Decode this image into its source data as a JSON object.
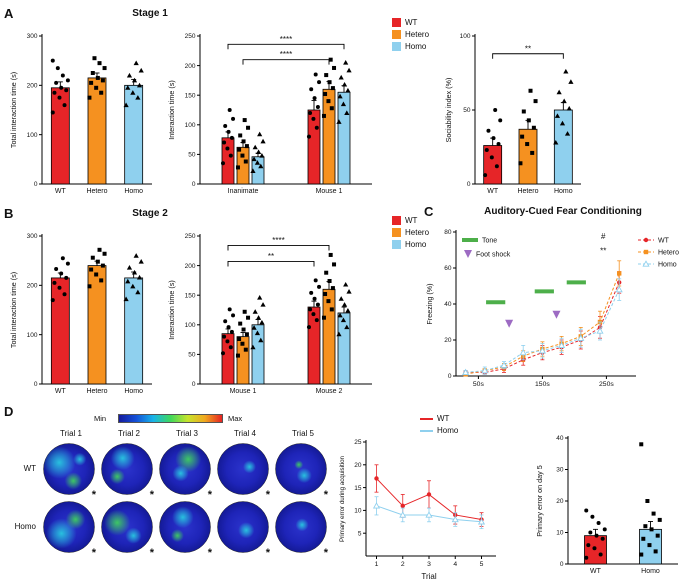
{
  "colors": {
    "wt": "#e62528",
    "hetero": "#f59120",
    "homo": "#8fd0ee",
    "tone": "#4daf4a",
    "footshock": "#9d6bc3",
    "spot_c": "#29c8e0",
    "spot_g": "#3fcf5f"
  },
  "panels": {
    "a": "A",
    "b": "B",
    "c": "C",
    "d": "D"
  },
  "legend": {
    "wt": "WT",
    "hetero": "Hetero",
    "homo": "Homo"
  },
  "d_legend": {
    "wt": "WT",
    "homo": "Homo"
  },
  "chart_data": [
    {
      "id": "stage1-total-interaction",
      "type": "bar",
      "ylabel": "Total interaction time (s)",
      "ylim": [
        0,
        300
      ],
      "yticks": [
        0,
        100,
        200,
        300
      ],
      "categories": [
        "WT",
        "Hetero",
        "Homo"
      ],
      "values": [
        195,
        215,
        200
      ],
      "errors": [
        12,
        10,
        12
      ],
      "colors": [
        "wt",
        "hetero",
        "homo"
      ],
      "markers": [
        "circle",
        "square",
        "triangle"
      ],
      "points": [
        [
          145,
          160,
          175,
          185,
          190,
          195,
          205,
          210,
          220,
          235,
          250
        ],
        [
          175,
          185,
          195,
          205,
          210,
          215,
          225,
          235,
          245,
          255
        ],
        [
          160,
          175,
          185,
          195,
          200,
          210,
          220,
          230,
          245
        ]
      ],
      "m": {
        "l": 34,
        "r": 6,
        "t": 14,
        "b": 18
      }
    },
    {
      "id": "stage1-interaction-time",
      "type": "grouped_bar",
      "title": "Stage 1",
      "ylabel": "Interaction time (s)",
      "ylim": [
        0,
        250
      ],
      "yticks": [
        0,
        50,
        100,
        150,
        200,
        250
      ],
      "groups": [
        "Inanimate",
        "Mouse 1"
      ],
      "series": [
        {
          "name": "WT",
          "color": "wt",
          "marker": "circle",
          "values": [
            78,
            125
          ],
          "errors": [
            10,
            16
          ],
          "points": [
            [
              35,
              48,
              60,
              70,
              78,
              88,
              98,
              110,
              125
            ],
            [
              80,
              95,
              110,
              120,
              130,
              145,
              160,
              172,
              185
            ]
          ]
        },
        {
          "name": "Hetero",
          "color": "hetero",
          "marker": "square",
          "values": [
            62,
            160
          ],
          "errors": [
            8,
            13
          ],
          "points": [
            [
              28,
              38,
              48,
              58,
              64,
              72,
              82,
              95,
              108
            ],
            [
              115,
              128,
              140,
              152,
              162,
              172,
              184,
              196,
              210
            ]
          ]
        },
        {
          "name": "Homo",
          "color": "homo",
          "marker": "triangle",
          "values": [
            46,
            155
          ],
          "errors": [
            6,
            11
          ],
          "points": [
            [
              22,
              30,
              36,
              42,
              48,
              54,
              62,
              72,
              84
            ],
            [
              105,
              120,
              135,
              148,
              158,
              168,
              180,
              192,
              205
            ]
          ]
        }
      ],
      "brackets": [
        {
          "from": [
            0,
            1
          ],
          "to": [
            1,
            1
          ],
          "y": 210,
          "label": "****"
        },
        {
          "from": [
            0,
            0
          ],
          "to": [
            1,
            2
          ],
          "y": 236,
          "label": "****"
        }
      ],
      "m": {
        "l": 34,
        "r": 6,
        "t": 14,
        "b": 18
      }
    },
    {
      "id": "sociability-index",
      "type": "bar",
      "ylabel": "Sociability index (%)",
      "ylim": [
        0,
        100
      ],
      "yticks": [
        0,
        50,
        100
      ],
      "categories": [
        "WT",
        "Hetero",
        "Homo"
      ],
      "values": [
        26,
        37,
        50
      ],
      "errors": [
        5,
        6,
        5
      ],
      "colors": [
        "wt",
        "hetero",
        "homo"
      ],
      "markers": [
        "circle",
        "square",
        "triangle"
      ],
      "points": [
        [
          6,
          12,
          18,
          23,
          27,
          31,
          36,
          43,
          50
        ],
        [
          14,
          21,
          27,
          32,
          38,
          43,
          49,
          56,
          63
        ],
        [
          28,
          34,
          41,
          46,
          51,
          56,
          62,
          69,
          76
        ]
      ],
      "brackets": [
        {
          "from": 0,
          "to": 2,
          "y": 88,
          "label": "**"
        }
      ],
      "m": {
        "l": 32,
        "r": 12,
        "t": 14,
        "b": 18
      }
    },
    {
      "id": "stage2-total-interaction",
      "type": "bar",
      "ylabel": "Total interaction time (s)",
      "ylim": [
        0,
        300
      ],
      "yticks": [
        0,
        100,
        200,
        300
      ],
      "categories": [
        "WT",
        "Hetero",
        "Homo"
      ],
      "values": [
        215,
        240,
        215
      ],
      "errors": [
        10,
        9,
        12
      ],
      "colors": [
        "wt",
        "hetero",
        "homo"
      ],
      "markers": [
        "circle",
        "square",
        "triangle"
      ],
      "points": [
        [
          170,
          182,
          195,
          205,
          215,
          224,
          233,
          244,
          255
        ],
        [
          198,
          210,
          222,
          232,
          240,
          248,
          256,
          264,
          272
        ],
        [
          172,
          186,
          198,
          208,
          216,
          226,
          236,
          248,
          260
        ]
      ],
      "m": {
        "l": 34,
        "r": 6,
        "t": 14,
        "b": 18
      }
    },
    {
      "id": "stage2-interaction-time",
      "type": "grouped_bar",
      "title": "Stage 2",
      "ylabel": "Interaction time (s)",
      "ylim": [
        0,
        250
      ],
      "yticks": [
        0,
        50,
        100,
        150,
        200,
        250
      ],
      "groups": [
        "Mouse 1",
        "Mouse 2"
      ],
      "series": [
        {
          "name": "WT",
          "color": "wt",
          "marker": "circle",
          "values": [
            85,
            130
          ],
          "errors": [
            8,
            10
          ],
          "points": [
            [
              52,
              62,
              72,
              80,
              88,
              96,
              106,
              116,
              126
            ],
            [
              96,
              108,
              118,
              126,
              134,
              144,
              154,
              164,
              175
            ]
          ]
        },
        {
          "name": "Hetero",
          "color": "hetero",
          "marker": "square",
          "values": [
            80,
            160
          ],
          "errors": [
            7,
            13
          ],
          "points": [
            [
              48,
              58,
              68,
              76,
              84,
              92,
              102,
              112,
              122
            ],
            [
              112,
              126,
              140,
              152,
              162,
              174,
              188,
              202,
              218
            ]
          ]
        },
        {
          "name": "Homo",
          "color": "homo",
          "marker": "triangle",
          "values": [
            100,
            120
          ],
          "errors": [
            9,
            10
          ],
          "points": [
            [
              62,
              74,
              86,
              95,
              104,
              112,
              122,
              134,
              146
            ],
            [
              84,
              96,
              108,
              116,
              124,
              134,
              144,
              156,
              168
            ]
          ]
        }
      ],
      "brackets": [
        {
          "from": [
            0,
            0
          ],
          "to": [
            1,
            0
          ],
          "y": 207,
          "label": "**"
        },
        {
          "from": [
            0,
            0
          ],
          "to": [
            1,
            1
          ],
          "y": 234,
          "label": "****"
        }
      ],
      "m": {
        "l": 34,
        "r": 6,
        "t": 14,
        "b": 18
      }
    },
    {
      "id": "auditory-cued-fear-conditioning",
      "type": "line",
      "title": "Auditory-Cued Fear Conditioning",
      "ylabel": "Freezing (%)",
      "ylim": [
        0,
        80
      ],
      "yticks": [
        0,
        20,
        40,
        60,
        80
      ],
      "xlim": [
        15,
        290
      ],
      "xticks": [
        {
          "v": 50,
          "label": "50s"
        },
        {
          "v": 150,
          "label": "150s"
        },
        {
          "v": 250,
          "label": "250s"
        }
      ],
      "x": [
        30,
        60,
        90,
        120,
        150,
        180,
        210,
        240,
        270
      ],
      "dashed": true,
      "show_legend": true,
      "series": [
        {
          "name": "WT",
          "color": "wt",
          "marker": "circle",
          "fill": true,
          "values": [
            2,
            2,
            4,
            9,
            13,
            16,
            20,
            27,
            52
          ],
          "errors": [
            1,
            1,
            2,
            3,
            4,
            4,
            5,
            6,
            6
          ]
        },
        {
          "name": "Hetero",
          "color": "hetero",
          "marker": "square",
          "fill": true,
          "values": [
            1,
            3,
            5,
            11,
            15,
            18,
            22,
            30,
            57
          ],
          "errors": [
            1,
            1,
            2,
            3,
            4,
            4,
            5,
            6,
            7
          ]
        },
        {
          "name": "Homo",
          "color": "homo",
          "marker": "triangle",
          "fill": false,
          "values": [
            2,
            3,
            6,
            13,
            14,
            17,
            21,
            25,
            48
          ],
          "errors": [
            1,
            2,
            2,
            4,
            4,
            4,
            5,
            5,
            6
          ]
        }
      ],
      "tone_label": "Tone",
      "footshock_label": "Foot shock",
      "tone_segments": [
        [
          62,
          92,
          41
        ],
        [
          138,
          168,
          47
        ],
        [
          188,
          218,
          52
        ]
      ],
      "footshock_points": [
        [
          98,
          29
        ],
        [
          172,
          34
        ]
      ],
      "annotations": [
        {
          "x": 245,
          "y": 76,
          "text": "#"
        },
        {
          "x": 245,
          "y": 68,
          "text": "**"
        }
      ],
      "m": {
        "l": 32,
        "r": 64,
        "t": 12,
        "b": 20
      }
    },
    {
      "id": "primary-error-acquisition",
      "type": "line",
      "ylabel": "Primary error during acquisition",
      "xlabel": "Trial",
      "ylim": [
        0,
        25
      ],
      "yticks": [
        5,
        10,
        15,
        20,
        25
      ],
      "xlim": [
        0.6,
        5.4
      ],
      "xticks": [
        {
          "v": 1,
          "label": "1"
        },
        {
          "v": 2,
          "label": "2"
        },
        {
          "v": 3,
          "label": "3"
        },
        {
          "v": 4,
          "label": "4"
        },
        {
          "v": 5,
          "label": "5"
        }
      ],
      "x": [
        1,
        2,
        3,
        4,
        5
      ],
      "dashed": false,
      "show_legend": false,
      "series": [
        {
          "name": "WT",
          "color": "wt",
          "marker": "circle",
          "fill": true,
          "values": [
            17,
            11,
            13.5,
            9,
            8
          ],
          "errors": [
            3,
            2.5,
            3,
            2,
            1.5
          ]
        },
        {
          "name": "Homo",
          "color": "homo",
          "marker": "triangle",
          "fill": false,
          "values": [
            11,
            9,
            9,
            8,
            7.5
          ],
          "errors": [
            2,
            1.5,
            1.5,
            1.5,
            1.5
          ]
        }
      ],
      "ylabel_size": 6.2,
      "m": {
        "l": 30,
        "r": 10,
        "t": 10,
        "b": 26
      }
    },
    {
      "id": "primary-error-day5",
      "type": "bar",
      "ylabel": "Primary error on day 5",
      "ylim": [
        0,
        40
      ],
      "yticks": [
        0,
        10,
        20,
        30,
        40
      ],
      "categories": [
        "WT",
        "Homo"
      ],
      "values": [
        9,
        11
      ],
      "errors": [
        2,
        2.5
      ],
      "colors": [
        "wt",
        "homo"
      ],
      "markers": [
        "circle",
        "square"
      ],
      "points": [
        [
          2,
          3,
          5,
          6,
          8,
          9,
          10,
          11,
          13,
          15,
          17
        ],
        [
          3,
          4,
          6,
          8,
          9,
          11,
          12,
          14,
          16,
          20,
          38
        ]
      ],
      "barw": 22,
      "m": {
        "l": 34,
        "r": 16,
        "t": 12,
        "b": 18
      }
    },
    {
      "id": "barnes-maze-heatmaps",
      "type": "heatmap",
      "colorbar": {
        "min": "Min",
        "max": "Max"
      },
      "trials": [
        "Trial 1",
        "Trial 2",
        "Trial 3",
        "Trial 4",
        "Trial 5"
      ],
      "target_marker": "*",
      "rows": [
        {
          "label": "WT",
          "cells": [
            [
              [
                0.32,
                0.38,
                0.3,
                "c"
              ],
              [
                0.58,
                0.72,
                0.16,
                "g"
              ],
              [
                0.7,
                0.32,
                0.12,
                "c"
              ]
            ],
            [
              [
                0.42,
                0.3,
                0.22,
                "c"
              ],
              [
                0.32,
                0.64,
                0.14,
                "g"
              ]
            ],
            [
              [
                0.56,
                0.32,
                0.24,
                "g"
              ],
              [
                0.42,
                0.58,
                0.15,
                "c"
              ]
            ],
            [
              [
                0.62,
                0.46,
                0.12,
                "c"
              ]
            ],
            [
              [
                0.56,
                0.62,
                0.14,
                "c"
              ],
              [
                0.46,
                0.42,
                0.08,
                "g"
              ]
            ]
          ]
        },
        {
          "label": "Homo",
          "cells": [
            [
              [
                0.36,
                0.62,
                0.28,
                "c"
              ],
              [
                0.62,
                0.36,
                0.18,
                "g"
              ]
            ],
            [
              [
                0.32,
                0.42,
                0.24,
                "g"
              ],
              [
                0.62,
                0.66,
                0.15,
                "c"
              ]
            ],
            [
              [
                0.46,
                0.32,
                0.2,
                "c"
              ],
              [
                0.36,
                0.66,
                0.12,
                "g"
              ]
            ],
            [
              [
                0.56,
                0.56,
                0.15,
                "c"
              ]
            ],
            [
              [
                0.52,
                0.46,
                0.12,
                "c"
              ]
            ]
          ]
        }
      ]
    }
  ]
}
